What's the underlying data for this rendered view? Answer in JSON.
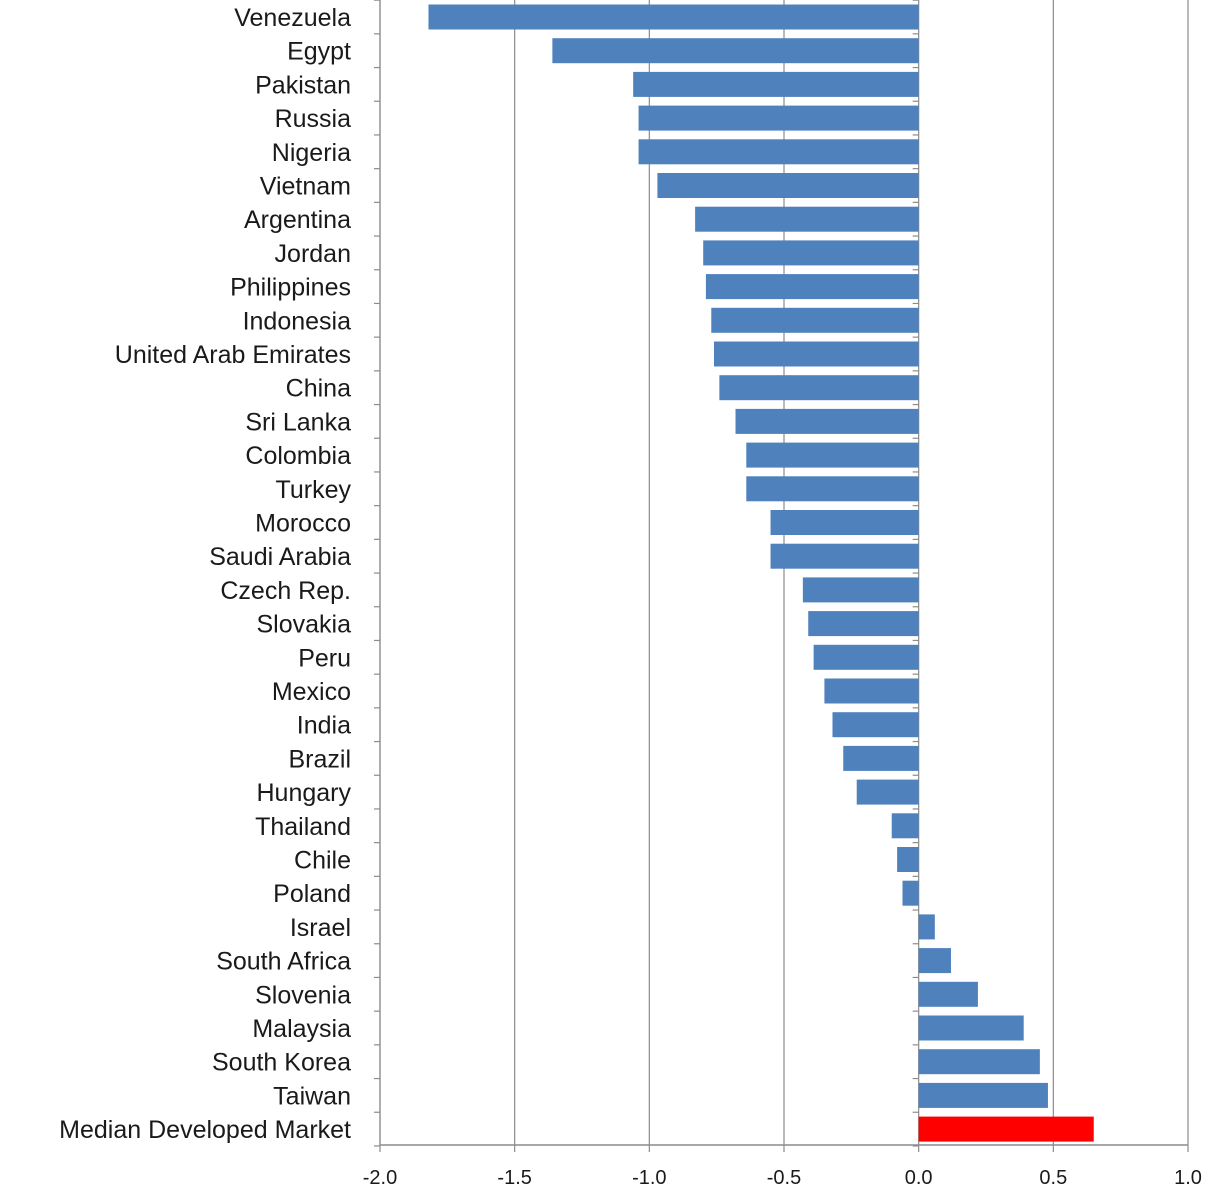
{
  "chart_data": {
    "type": "bar",
    "orientation": "horizontal",
    "categories": [
      "Venezuela",
      "Egypt",
      "Pakistan",
      "Russia",
      "Nigeria",
      "Vietnam",
      "Argentina",
      "Jordan",
      "Philippines",
      "Indonesia",
      "United Arab Emirates",
      "China",
      "Sri Lanka",
      "Colombia",
      "Turkey",
      "Morocco",
      "Saudi Arabia",
      "Czech Rep.",
      "Slovakia",
      "Peru",
      "Mexico",
      "India",
      "Brazil",
      "Hungary",
      "Thailand",
      "Chile",
      "Poland",
      "Israel",
      "South Africa",
      "Slovenia",
      "Malaysia",
      "South Korea",
      "Taiwan",
      "Median Developed Market"
    ],
    "values": [
      -1.82,
      -1.36,
      -1.06,
      -1.04,
      -1.04,
      -0.97,
      -0.83,
      -0.8,
      -0.79,
      -0.77,
      -0.76,
      -0.74,
      -0.68,
      -0.64,
      -0.64,
      -0.55,
      -0.55,
      -0.43,
      -0.41,
      -0.39,
      -0.35,
      -0.32,
      -0.28,
      -0.23,
      -0.1,
      -0.08,
      -0.06,
      0.06,
      0.12,
      0.22,
      0.39,
      0.45,
      0.48,
      0.65
    ],
    "highlight": {
      "category": "Median Developed Market",
      "color": "#ff0000"
    },
    "bar_color": "#4f81bd",
    "xlim": [
      -2.0,
      1.0
    ],
    "x_ticks": [
      "-2.0",
      "-1.5",
      "-1.0",
      "-0.5",
      "0.0",
      "0.5",
      "1.0"
    ],
    "title": "",
    "xlabel": "",
    "ylabel": "",
    "grid": "vertical",
    "legend": "none"
  }
}
